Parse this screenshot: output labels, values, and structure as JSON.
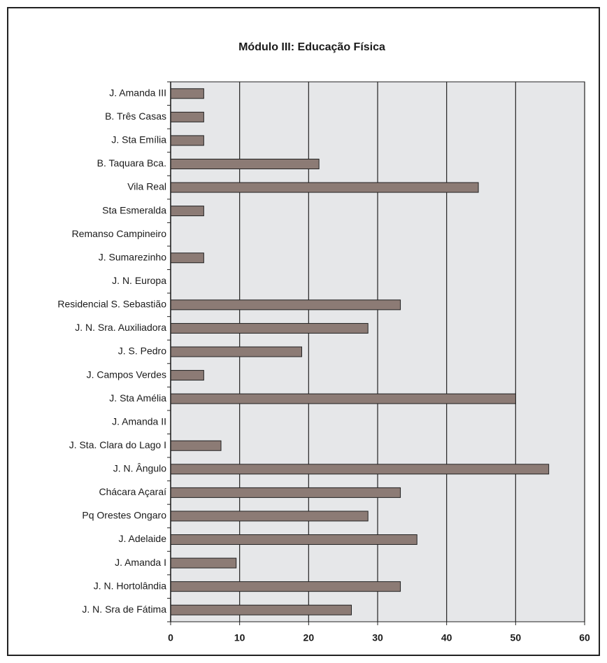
{
  "chart_data": {
    "type": "bar",
    "orientation": "horizontal",
    "title": "Módulo III: Educação Física",
    "categories": [
      "J. Amanda III",
      "B. Três Casas",
      "J. Sta Emília",
      "B. Taquara Bca.",
      "Vila Real",
      "Sta Esmeralda",
      "Remanso Campineiro",
      "J. Sumarezinho",
      "J. N. Europa",
      "Residencial S. Sebastião",
      "J. N. Sra. Auxiliadora",
      "J. S. Pedro",
      "J. Campos Verdes",
      "J. Sta Amélia",
      "J. Amanda II",
      "J. Sta. Clara do Lago I",
      "J. N. Ângulo",
      "Chácara Açaraí",
      "Pq Orestes Ongaro",
      "J. Adelaide",
      "J. Amanda I",
      "J. N. Hortolândia",
      "J. N. Sra de Fátima"
    ],
    "values": [
      4.8,
      4.8,
      4.8,
      21.5,
      44.6,
      4.8,
      0,
      4.8,
      0,
      33.3,
      28.6,
      19.0,
      4.8,
      50,
      0,
      7.3,
      54.8,
      33.3,
      28.6,
      35.7,
      9.5,
      33.3,
      26.2
    ],
    "color": "#8c7b75",
    "xlim": [
      0,
      60
    ],
    "xticks": [
      0,
      10,
      20,
      30,
      40,
      50,
      60
    ],
    "grid": true
  }
}
